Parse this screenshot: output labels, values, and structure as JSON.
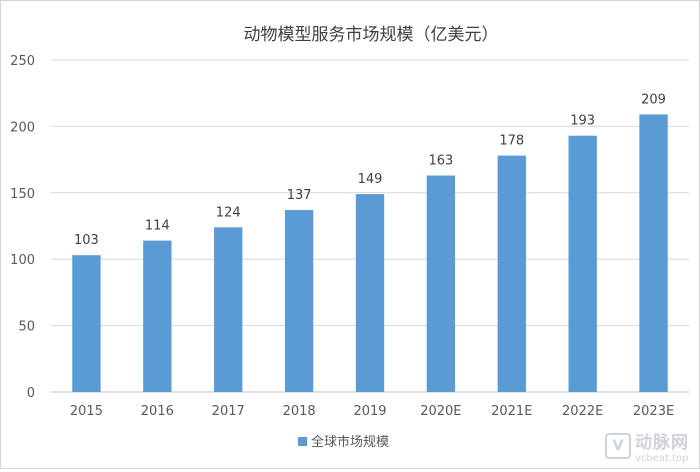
{
  "chart_data": {
    "type": "bar",
    "title": "动物模型服务市场规模（亿美元）",
    "categories": [
      "2015",
      "2016",
      "2017",
      "2018",
      "2019",
      "2020E",
      "2021E",
      "2022E",
      "2023E"
    ],
    "series": [
      {
        "name": "全球市场规模",
        "values": [
          103,
          114,
          124,
          137,
          149,
          163,
          178,
          193,
          209
        ]
      }
    ],
    "ylim": [
      0,
      250
    ],
    "yticks": [
      0,
      50,
      100,
      150,
      200,
      250
    ],
    "grid": true,
    "legend": "bottom",
    "bar_color": "#5b9bd5",
    "grid_color": "#d9d9d9"
  },
  "watermark": {
    "logo": "V",
    "brand": "动脉网",
    "site": "vcbeat.top"
  }
}
